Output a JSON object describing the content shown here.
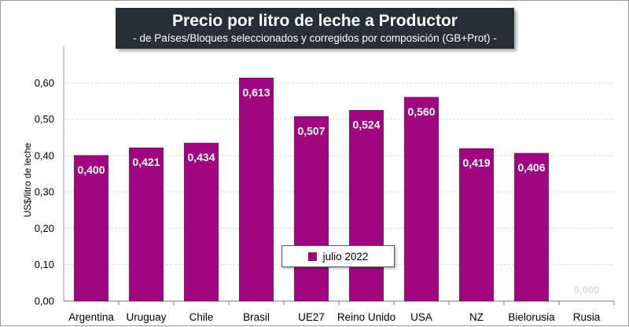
{
  "colors": {
    "bar": "#a0067f",
    "title_bg": "#262f38",
    "grid": "#d9d9d9",
    "zero_label": "#dcdcdc"
  },
  "chart_data": {
    "type": "bar",
    "title": "Precio por litro de leche a Productor",
    "subtitle": "-  de Países/Bloques seleccionados y corregidos por composición (GB+Prot) -",
    "xlabel": "",
    "ylabel": "US$/litro de leche",
    "ylim": [
      0,
      0.7
    ],
    "yticks": [
      "0,00",
      "0,10",
      "0,20",
      "0,30",
      "0,40",
      "0,50",
      "0,60"
    ],
    "grid": true,
    "legend_position": "bottom-center",
    "categories": [
      "Argentina",
      "Uruguay",
      "Chile",
      "Brasil",
      "UE27",
      "Reino Unido",
      "USA",
      "NZ",
      "Bielorusia",
      "Rusia"
    ],
    "series": [
      {
        "name": "julio 2022",
        "values": [
          0.4,
          0.421,
          0.434,
          0.613,
          0.507,
          0.524,
          0.56,
          0.419,
          0.406,
          0.0
        ],
        "labels": [
          "0,400",
          "0,421",
          "0,434",
          "0,613",
          "0,507",
          "0,524",
          "0,560",
          "0,419",
          "0,406",
          "0,000"
        ]
      }
    ]
  }
}
